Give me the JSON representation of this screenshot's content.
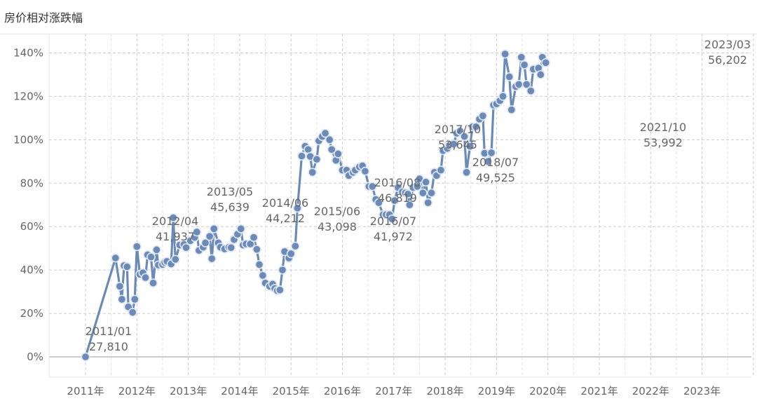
{
  "title": "房价相对涨跌幅",
  "colors": {
    "line": "#6a8bb8",
    "marker_fill": "#6a8bb8",
    "marker_stroke": "#dfe6f0",
    "grid": "#cccccc",
    "zero": "#999999",
    "text": "#666666"
  },
  "chart_data": {
    "type": "line",
    "title": "房价相对涨跌幅",
    "xlabel": "",
    "ylabel": "",
    "ylim": [
      0,
      140
    ],
    "y_ticks": [
      0,
      20,
      40,
      60,
      80,
      100,
      120,
      140
    ],
    "y_tick_labels": [
      "0%",
      "20%",
      "40%",
      "60%",
      "80%",
      "100%",
      "120%",
      "140%"
    ],
    "x_tick_labels": [
      "2011年",
      "2012年",
      "2013年",
      "2014年",
      "2015年",
      "2016年",
      "2017年",
      "2018年",
      "2019年",
      "2020年",
      "2021年",
      "2022年",
      "2023年"
    ],
    "grid": true,
    "x_unit": "months since 2011/01",
    "series": [
      {
        "name": "",
        "points": [
          [
            0,
            0
          ],
          [
            7,
            45.5
          ],
          [
            8,
            32.5
          ],
          [
            8.5,
            26.5
          ],
          [
            9,
            42
          ],
          [
            9.7,
            41.5
          ],
          [
            10,
            23
          ],
          [
            11,
            20.5
          ],
          [
            11.5,
            26.5
          ],
          [
            12,
            50.8
          ],
          [
            12.7,
            38
          ],
          [
            13.4,
            38.7
          ],
          [
            14,
            36.5
          ],
          [
            14.5,
            47
          ],
          [
            15.3,
            46
          ],
          [
            15.8,
            34
          ],
          [
            16.6,
            49.3
          ],
          [
            17,
            42.3
          ],
          [
            18,
            42.5
          ],
          [
            18.5,
            43.5
          ],
          [
            19,
            44
          ],
          [
            20,
            42.8
          ],
          [
            20.5,
            64.1
          ],
          [
            21,
            44.9
          ],
          [
            22,
            51.5
          ],
          [
            23,
            51.8
          ],
          [
            23.5,
            50.3
          ],
          [
            24.5,
            53.5
          ],
          [
            25.5,
            55
          ],
          [
            26,
            57.5
          ],
          [
            26.5,
            49
          ],
          [
            27.5,
            50.5
          ],
          [
            28,
            52.5
          ],
          [
            29,
            55.5
          ],
          [
            29.5,
            45.2
          ],
          [
            30,
            59
          ],
          [
            31,
            52.5
          ],
          [
            31.5,
            50.5
          ],
          [
            32.5,
            49.7
          ],
          [
            33.5,
            50.5
          ],
          [
            34,
            50.3
          ],
          [
            34.7,
            54
          ],
          [
            35.5,
            56.5
          ],
          [
            36.3,
            59
          ],
          [
            36.8,
            51.5
          ],
          [
            37.5,
            52
          ],
          [
            38.5,
            52
          ],
          [
            39.3,
            55
          ],
          [
            40,
            49.5
          ],
          [
            40.6,
            42.5
          ],
          [
            41.4,
            37.5
          ],
          [
            42,
            34
          ],
          [
            43,
            32.5
          ],
          [
            43.7,
            33.5
          ],
          [
            44.2,
            31.5
          ],
          [
            44.8,
            30.5
          ],
          [
            45.4,
            30.8
          ],
          [
            46,
            40
          ],
          [
            46.5,
            48.5
          ],
          [
            47.5,
            45.5
          ],
          [
            48,
            47.5
          ],
          [
            49,
            51
          ],
          [
            49.5,
            68.5
          ],
          [
            50.5,
            92.5
          ],
          [
            51.3,
            97
          ],
          [
            52,
            95.5
          ],
          [
            52.5,
            92.3
          ],
          [
            53,
            85
          ],
          [
            54,
            91
          ],
          [
            54.5,
            99.5
          ],
          [
            55.3,
            101.5
          ],
          [
            56,
            103
          ],
          [
            57,
            100
          ],
          [
            57.5,
            95.5
          ],
          [
            58.5,
            90.5
          ],
          [
            59,
            93.5
          ],
          [
            60,
            86
          ],
          [
            61,
            86
          ],
          [
            61.5,
            83.5
          ],
          [
            62.5,
            85
          ],
          [
            63,
            86
          ],
          [
            64,
            87.5
          ],
          [
            64.7,
            88
          ],
          [
            65.3,
            85.5
          ],
          [
            66.2,
            78.5
          ],
          [
            67,
            78.5
          ],
          [
            67.8,
            72.5
          ],
          [
            68.5,
            71
          ],
          [
            69.5,
            65.5
          ],
          [
            70.2,
            65.5
          ],
          [
            71,
            65.5
          ],
          [
            71.6,
            63.5
          ],
          [
            72.2,
            72
          ],
          [
            73,
            78
          ],
          [
            74,
            76
          ],
          [
            74.7,
            75.5
          ],
          [
            75.3,
            75
          ],
          [
            75.7,
            70
          ],
          [
            76.5,
            78
          ],
          [
            77.5,
            78.5
          ],
          [
            78,
            82
          ],
          [
            78.8,
            75.5
          ],
          [
            79.5,
            80.5
          ],
          [
            80,
            71
          ],
          [
            80.8,
            75.5
          ],
          [
            81.5,
            85
          ],
          [
            82,
            83.5
          ],
          [
            83,
            86
          ],
          [
            83.5,
            95
          ],
          [
            84.5,
            96
          ],
          [
            85,
            97.5
          ],
          [
            86,
            98
          ],
          [
            86.7,
            103
          ],
          [
            87.5,
            104
          ],
          [
            88.5,
            101.5
          ],
          [
            89,
            85
          ],
          [
            89.8,
            97
          ],
          [
            90.4,
            106
          ],
          [
            91.2,
            106
          ],
          [
            92,
            109.5
          ],
          [
            92.8,
            111
          ],
          [
            93.2,
            93.8
          ],
          [
            94,
            90
          ],
          [
            94.8,
            94
          ],
          [
            95.3,
            116
          ],
          [
            96,
            116.5
          ],
          [
            96.8,
            118
          ],
          [
            97.5,
            120
          ],
          [
            98,
            139.5
          ],
          [
            99,
            129
          ],
          [
            99.5,
            113.8
          ],
          [
            100.5,
            124.5
          ],
          [
            101.2,
            125.5
          ],
          [
            101.8,
            138
          ],
          [
            102.5,
            134.5
          ],
          [
            103,
            125.5
          ],
          [
            104,
            122.5
          ],
          [
            104.6,
            132.5
          ],
          [
            105.8,
            133
          ],
          [
            106.3,
            130
          ],
          [
            106.7,
            138
          ],
          [
            107.5,
            135.5
          ]
        ]
      }
    ],
    "annotations": [
      {
        "date": "2011/01",
        "value": "27,810",
        "x": 0,
        "y": 0
      },
      {
        "date": "2012/04",
        "value": "41,937",
        "x": 15.3,
        "y": 46
      },
      {
        "date": "2013/05",
        "value": "45,639",
        "x": 20.5,
        "y": 64.1
      },
      {
        "date": "2014/06",
        "value": "44,212",
        "x": 36.3,
        "y": 59
      },
      {
        "date": "2015/06",
        "value": "43,098",
        "x": 44.2,
        "y": 31.5
      },
      {
        "date": "2016/07",
        "value": "41,972",
        "x": 49,
        "y": 51
      },
      {
        "date": "2016/08",
        "value": "46,819",
        "x": 49.5,
        "y": 68.5
      },
      {
        "date": "2017/10",
        "value": "53,645",
        "x": 56,
        "y": 103
      },
      {
        "date": "2018/07",
        "value": "49,525",
        "x": 65.3,
        "y": 85.5
      },
      {
        "date": "2021/10",
        "value": "53,992",
        "x": 92.8,
        "y": 111
      },
      {
        "date": "2023/03",
        "value": "56,202",
        "x": 106.7,
        "y": 138
      }
    ]
  }
}
